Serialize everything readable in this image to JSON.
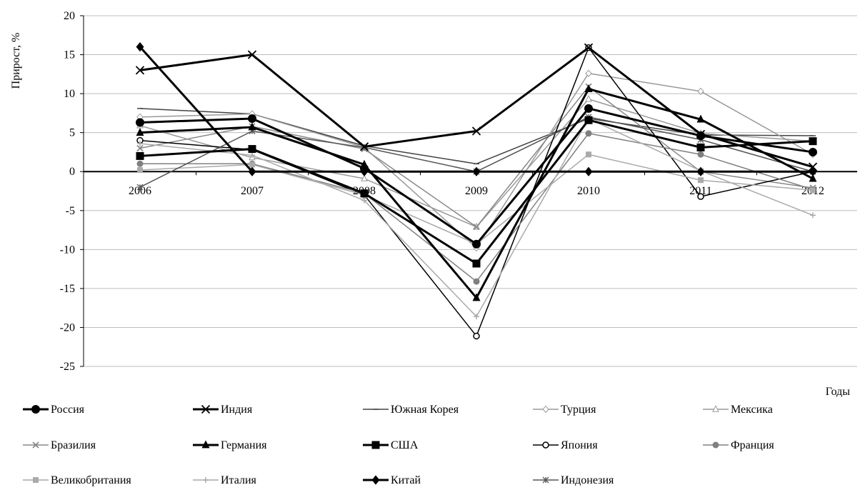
{
  "chart_data": {
    "type": "line",
    "title": "",
    "xlabel": "Годы",
    "ylabel": "Прирост, %",
    "ylim": [
      -25,
      20
    ],
    "yticks": [
      20,
      15,
      10,
      5,
      0,
      -5,
      -10,
      -15,
      -20,
      -25
    ],
    "categories": [
      "2006",
      "2007",
      "2008",
      "2009",
      "2010",
      "2011",
      "2012"
    ],
    "grid": true,
    "legend_position": "bottom",
    "series": [
      {
        "name": "Россия",
        "color": "#000000",
        "marker": "circle-filled",
        "width": 3,
        "values": [
          6.3,
          6.8,
          0.4,
          -9.3,
          8.1,
          4.6,
          2.5
        ]
      },
      {
        "name": "Индия",
        "color": "#000000",
        "marker": "x",
        "width": 3,
        "values": [
          13.0,
          15.0,
          3.2,
          5.2,
          15.9,
          4.8,
          0.6
        ]
      },
      {
        "name": "Южная Корея",
        "color": "#444444",
        "marker": "dash",
        "width": 1.5,
        "values": [
          8.1,
          7.4,
          3.3,
          1.0,
          6.8,
          4.7,
          4.6
        ]
      },
      {
        "name": "Турция",
        "color": "#999999",
        "marker": "diamond-open",
        "width": 1.5,
        "values": [
          7.0,
          7.4,
          3.1,
          -9.8,
          12.6,
          10.3,
          2.2
        ]
      },
      {
        "name": "Мексика",
        "color": "#999999",
        "marker": "triangle-open",
        "width": 1.5,
        "values": [
          5.9,
          1.8,
          -0.9,
          -7.1,
          9.3,
          4.9,
          3.9
        ]
      },
      {
        "name": "Бразилия",
        "color": "#888888",
        "marker": "x",
        "width": 1.5,
        "values": [
          3.0,
          5.8,
          2.9,
          -7.1,
          10.9,
          0.0,
          -2.1
        ]
      },
      {
        "name": "Германия",
        "color": "#000000",
        "marker": "triangle-filled",
        "width": 3,
        "values": [
          5.0,
          5.7,
          0.9,
          -16.2,
          10.6,
          6.7,
          -0.9
        ]
      },
      {
        "name": "США",
        "color": "#000000",
        "marker": "square-filled",
        "width": 3,
        "values": [
          2.0,
          2.9,
          -2.8,
          -11.8,
          6.6,
          3.1,
          3.9
        ]
      },
      {
        "name": "Япония",
        "color": "#000000",
        "marker": "circle-open",
        "width": 1.5,
        "values": [
          4.0,
          2.8,
          -3.0,
          -21.1,
          15.9,
          -3.2,
          0.0
        ]
      },
      {
        "name": "Франция",
        "color": "#808080",
        "marker": "circle-filled",
        "width": 1.5,
        "values": [
          1.0,
          1.0,
          -2.8,
          -14.1,
          4.9,
          2.2,
          -2.3
        ]
      },
      {
        "name": "Великобритания",
        "color": "#aaaaaa",
        "marker": "square-filled",
        "width": 1.5,
        "values": [
          0.2,
          0.9,
          -3.0,
          -9.3,
          2.2,
          -1.1,
          -2.4
        ]
      },
      {
        "name": "Италия",
        "color": "#aaaaaa",
        "marker": "plus",
        "width": 1.5,
        "values": [
          3.6,
          2.1,
          -3.7,
          -18.6,
          6.8,
          0.1,
          -5.6
        ]
      },
      {
        "name": "Китай",
        "color": "#000000",
        "marker": "diamond-filled",
        "width": 3,
        "values": [
          16.0,
          0.0,
          0.0,
          0.0,
          0.0,
          0.0,
          0.0
        ]
      },
      {
        "name": "Индонезия",
        "color": "#555555",
        "marker": "asterisk",
        "width": 1.5,
        "values": [
          -2.0,
          5.2,
          3.1,
          0.0,
          7.0,
          4.1,
          0.0
        ]
      }
    ]
  }
}
